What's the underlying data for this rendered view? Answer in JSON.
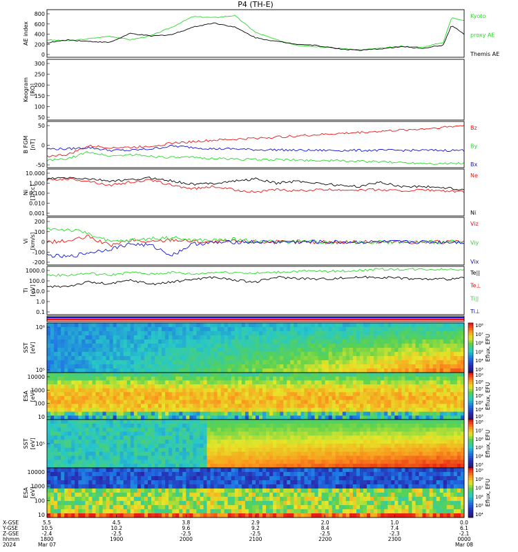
{
  "title": "P4 (TH-E)",
  "colors": {
    "frame": "#000000",
    "kyoto": "#22dd22",
    "themis": "#000000",
    "red": "#ee1111",
    "green": "#22dd22",
    "blue": "#1111dd",
    "spec_low": "#1a1a8a",
    "spec_high": "#ee3311"
  },
  "panels": [
    {
      "key": "ae",
      "type": "line",
      "ylabel": "AE index",
      "yticks": [
        "800",
        "600",
        "400",
        "200",
        "0"
      ],
      "legend": [
        {
          "text": "Kyoto",
          "color": "#22dd22"
        },
        {
          "text": "proxy AE",
          "color": "#22dd22"
        },
        {
          "text": "Themis AE",
          "color": "#000000"
        }
      ],
      "chart_data": {
        "type": "line",
        "ylim": [
          -50,
          850
        ],
        "x": [
          0,
          0.05,
          0.1,
          0.15,
          0.2,
          0.25,
          0.3,
          0.35,
          0.4,
          0.45,
          0.5,
          0.55,
          0.6,
          0.65,
          0.7,
          0.75,
          0.8,
          0.85,
          0.9,
          0.95,
          0.97,
          1.0
        ],
        "series": [
          {
            "name": "Kyoto proxy AE",
            "color": "#22dd22",
            "values": [
              280,
              260,
              300,
              350,
              280,
              360,
              520,
              720,
              700,
              740,
              420,
              280,
              180,
              150,
              120,
              90,
              120,
              160,
              140,
              230,
              700,
              650
            ]
          },
          {
            "name": "Themis AE",
            "color": "#000000",
            "values": [
              220,
              280,
              250,
              230,
              400,
              350,
              380,
              520,
              600,
              520,
              320,
              250,
              200,
              170,
              110,
              80,
              110,
              150,
              120,
              180,
              560,
              380
            ]
          }
        ]
      }
    },
    {
      "key": "keogram",
      "type": "empty",
      "ylabel": "Keogram",
      "yunit": "[RO]",
      "yticks": [
        "300",
        "250",
        "200",
        "150",
        "100",
        "50"
      ]
    },
    {
      "key": "bfgm",
      "type": "line",
      "ylabel": "B FGM",
      "yunit": "[nT]",
      "yticks": [
        "50",
        "0",
        "-50"
      ],
      "legend": [
        {
          "text": "Bz",
          "color": "#ee1111"
        },
        {
          "text": "By",
          "color": "#22dd22"
        },
        {
          "text": "Bx",
          "color": "#1111dd"
        }
      ],
      "chart_data": {
        "type": "line",
        "ylim": [
          -60,
          100
        ],
        "x": [
          0,
          0.05,
          0.1,
          0.15,
          0.2,
          0.25,
          0.3,
          0.35,
          0.4,
          0.45,
          0.5,
          0.55,
          0.6,
          0.65,
          0.7,
          0.75,
          0.8,
          0.85,
          0.9,
          0.95,
          1.0
        ],
        "series": [
          {
            "name": "Bz",
            "color": "#ee1111",
            "values": [
              -20,
              -15,
              15,
              10,
              10,
              15,
              25,
              30,
              35,
              38,
              42,
              46,
              50,
              54,
              58,
              62,
              66,
              70,
              74,
              80,
              86
            ]
          },
          {
            "name": "By",
            "color": "#22dd22",
            "values": [
              -35,
              -30,
              -5,
              -20,
              -15,
              -20,
              -25,
              -25,
              -28,
              -30,
              -32,
              -32,
              -34,
              -35,
              -36,
              -38,
              -40,
              -42,
              -44,
              -46,
              -44
            ]
          },
          {
            "name": "Bx",
            "color": "#1111dd",
            "values": [
              5,
              5,
              10,
              0,
              0,
              5,
              15,
              10,
              5,
              5,
              2,
              2,
              0,
              0,
              0,
              0,
              0,
              0,
              0,
              0,
              0
            ]
          }
        ]
      }
    },
    {
      "key": "ni",
      "type": "line",
      "ylabel": "Ni",
      "yunit": "[1/cc]",
      "yticks": [
        "10.000",
        "1.000",
        "0.100",
        "0.010",
        "0.001"
      ],
      "legend": [
        {
          "text": "Ne",
          "color": "#ee1111"
        },
        {
          "text": "Ni",
          "color": "#000000"
        }
      ],
      "chart_data": {
        "type": "line",
        "ylim": [
          -3,
          1.3
        ],
        "x": [
          0,
          0.05,
          0.1,
          0.15,
          0.2,
          0.25,
          0.3,
          0.35,
          0.4,
          0.45,
          0.5,
          0.55,
          0.6,
          0.65,
          0.7,
          0.75,
          0.8,
          0.85,
          0.9,
          0.95,
          1.0
        ],
        "series": [
          {
            "name": "Ne",
            "color": "#ee1111",
            "values": [
              0.3,
              0.4,
              0.2,
              -0.2,
              0.1,
              0.3,
              -0.2,
              -0.5,
              -0.3,
              -0.6,
              -0.8,
              -0.6,
              -0.7,
              -0.6,
              -0.6,
              -0.6,
              -0.6,
              -0.7,
              -0.6,
              -0.7,
              -0.8
            ]
          },
          {
            "name": "Ni",
            "color": "#000000",
            "values": [
              0.4,
              0.5,
              0.4,
              0.2,
              0.3,
              0.5,
              0.2,
              -0.1,
              0.0,
              0.2,
              0.4,
              0.0,
              0.2,
              0.0,
              -0.2,
              -0.3,
              0.1,
              -0.3,
              -0.3,
              -0.4,
              -0.6
            ]
          }
        ]
      }
    },
    {
      "key": "vi",
      "type": "line",
      "ylabel": "Vi",
      "yunit": "[km/s]",
      "yticks": [
        "200",
        "100",
        "0",
        "-100",
        "-200"
      ],
      "legend": [
        {
          "text": "Viz",
          "color": "#ee1111"
        },
        {
          "text": "Viy",
          "color": "#22dd22"
        },
        {
          "text": "Vix",
          "color": "#1111dd"
        }
      ],
      "chart_data": {
        "type": "line",
        "ylim": [
          -260,
          280
        ],
        "x": [
          0,
          0.05,
          0.1,
          0.15,
          0.2,
          0.25,
          0.3,
          0.35,
          0.4,
          0.45,
          0.5,
          0.55,
          0.6,
          0.65,
          0.7,
          0.75,
          0.8,
          0.85,
          0.9,
          0.95,
          1.0
        ],
        "series": [
          {
            "name": "Viz",
            "color": "#ee1111",
            "values": [
              0,
              10,
              60,
              -40,
              20,
              0,
              30,
              10,
              0,
              10,
              5,
              0,
              0,
              0,
              0,
              0,
              0,
              0,
              0,
              0,
              0
            ]
          },
          {
            "name": "Viy",
            "color": "#22dd22",
            "values": [
              150,
              140,
              100,
              0,
              20,
              40,
              50,
              20,
              20,
              30,
              10,
              0,
              10,
              5,
              0,
              0,
              0,
              0,
              0,
              0,
              0
            ]
          },
          {
            "name": "Vix",
            "color": "#1111dd",
            "values": [
              -150,
              -170,
              -120,
              -80,
              -20,
              -40,
              -150,
              -20,
              -10,
              0,
              0,
              0,
              0,
              0,
              0,
              0,
              0,
              0,
              0,
              0,
              0
            ]
          }
        ]
      }
    },
    {
      "key": "ti",
      "type": "line",
      "ylabel": "Ti",
      "yunit": "[eV]",
      "yticks": [
        "1000.0",
        "100.0",
        "10.0",
        "1.0",
        "0.1"
      ],
      "legend": [
        {
          "text": "Te||",
          "color": "#000000"
        },
        {
          "text": "Te⊥",
          "color": "#ee1111"
        },
        {
          "text": "Ti||",
          "color": "#22dd22"
        },
        {
          "text": "Ti⊥",
          "color": "#1111dd"
        }
      ],
      "chart_data": {
        "type": "line",
        "ylim": [
          -1.3,
          3.6
        ],
        "x": [
          0,
          0.05,
          0.1,
          0.15,
          0.2,
          0.25,
          0.3,
          0.35,
          0.4,
          0.45,
          0.5,
          0.55,
          0.6,
          0.65,
          0.7,
          0.75,
          0.8,
          0.85,
          0.9,
          0.95,
          1.0
        ],
        "series": [
          {
            "name": "Ti||",
            "color": "#22dd22",
            "values": [
              2.7,
              2.7,
              2.9,
              2.7,
              3.0,
              2.8,
              3.0,
              2.8,
              3.0,
              3.0,
              2.9,
              3.0,
              3.1,
              3.1,
              3.1,
              3.2,
              3.3,
              3.3,
              3.3,
              3.3,
              3.3
            ]
          },
          {
            "name": "Te||",
            "color": "#000000",
            "values": [
              1.5,
              1.6,
              2.0,
              1.8,
              2.2,
              1.8,
              2.0,
              2.3,
              2.5,
              2.2,
              2.0,
              2.5,
              2.4,
              2.3,
              2.4,
              2.5,
              2.5,
              2.4,
              2.3,
              2.3,
              2.4
            ]
          }
        ]
      }
    },
    {
      "key": "flag",
      "type": "flag",
      "chart_data": {
        "type": "bar",
        "values": [
          1
        ],
        "colors": [
          "#1111dd",
          "#ee1111"
        ]
      }
    },
    {
      "key": "sst_e",
      "type": "spectro",
      "ylabel": "SST",
      "yunit": "[eV]",
      "yticks": [
        "10⁶",
        "10⁵"
      ],
      "cbar_label": "Eflux, EFU",
      "cbar_ticks": [
        "10⁸",
        "10⁷",
        "10⁶",
        "10⁵",
        "10⁴",
        "10³"
      ],
      "chart_data": {
        "type": "heatmap",
        "colormap": "rainbow",
        "trend": "rises-late"
      }
    },
    {
      "key": "esa_e",
      "type": "spectro",
      "ylabel": "ESA",
      "yunit": "[eV]",
      "yticks": [
        "10000",
        "1000",
        "100",
        "10"
      ],
      "cbar_label": "Eflux, EFU",
      "cbar_ticks": [
        "10⁹",
        "10⁸",
        "10⁷",
        "10⁶",
        "10⁵",
        "10⁴",
        "10³"
      ],
      "chart_data": {
        "type": "heatmap",
        "colormap": "rainbow",
        "trend": "mid-band"
      }
    },
    {
      "key": "sst_i",
      "type": "spectro",
      "ylabel": "SST",
      "yunit": "[eV]",
      "yticks": [
        "10⁵"
      ],
      "cbar_label": "Eflux, EFU",
      "cbar_ticks": [
        "10⁸",
        "10⁷",
        "10⁶",
        "10⁵",
        "10⁴",
        "10³"
      ],
      "chart_data": {
        "type": "heatmap",
        "colormap": "rainbow",
        "trend": "hot-after-0.4"
      }
    },
    {
      "key": "esa_i",
      "type": "spectro",
      "ylabel": "ESA",
      "yunit": "[eV]",
      "yticks": [
        "10000",
        "1000",
        "100",
        "10"
      ],
      "cbar_label": "Eflux, EFU",
      "cbar_ticks": [
        "10⁹",
        "10⁸",
        "10⁷",
        "10⁶",
        "10⁵",
        "10⁴"
      ],
      "chart_data": {
        "type": "heatmap",
        "colormap": "rainbow",
        "trend": "hot-low"
      }
    }
  ],
  "xaxis": {
    "row_labels": [
      "X-GSE",
      "Y-GSE",
      "Z-GSE",
      "hhmm",
      "2024"
    ],
    "ticks": [
      {
        "x": 0.0,
        "vals": [
          "5.5",
          "10.5",
          "-2.4",
          "1800",
          "Mar 07"
        ]
      },
      {
        "x": 0.1667,
        "vals": [
          "4.5",
          "10.2",
          "-2.5",
          "1900",
          ""
        ]
      },
      {
        "x": 0.3333,
        "vals": [
          "3.8",
          "9.6",
          "-2.5",
          "2000",
          ""
        ]
      },
      {
        "x": 0.5,
        "vals": [
          "2.9",
          "9.2",
          "-2.5",
          "2100",
          ""
        ]
      },
      {
        "x": 0.6667,
        "vals": [
          "2.0",
          "8.4",
          "-2.5",
          "2200",
          ""
        ]
      },
      {
        "x": 0.8333,
        "vals": [
          "1.0",
          "7.4",
          "-2.3",
          "2300",
          ""
        ]
      },
      {
        "x": 1.0,
        "vals": [
          "0.0",
          "6.1",
          "-2.1",
          "0000",
          "Mar 08"
        ]
      }
    ]
  }
}
